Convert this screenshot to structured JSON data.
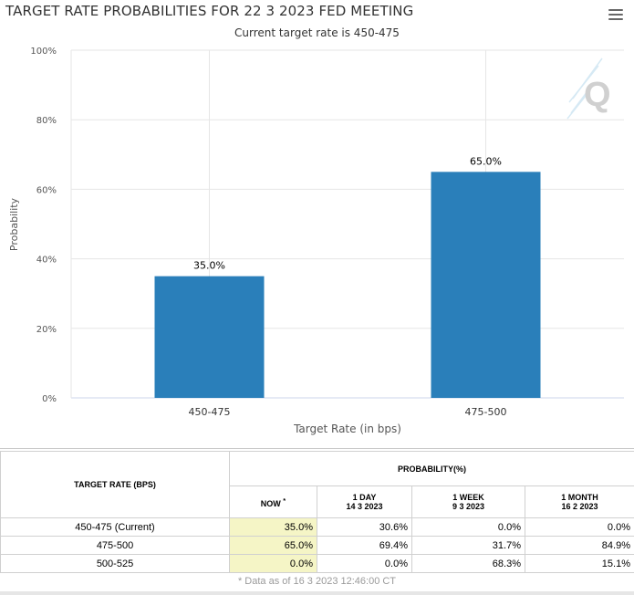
{
  "chart_data": {
    "type": "bar",
    "title": "TARGET RATE PROBABILITIES FOR 22 3 2023 FED MEETING",
    "subtitle": "Current target rate is 450-475",
    "categories": [
      "450-475",
      "475-500"
    ],
    "values": [
      35.0,
      65.0
    ],
    "value_labels": [
      "35.0%",
      "65.0%"
    ],
    "xlabel": "Target Rate (in bps)",
    "ylabel": "Probability",
    "ylim": [
      0,
      100
    ],
    "yticks": [
      0,
      20,
      40,
      60,
      80,
      100
    ],
    "ytick_labels": [
      "0%",
      "20%",
      "40%",
      "60%",
      "80%",
      "100%"
    ],
    "bar_color": "#2a7fba",
    "grid": true
  },
  "table": {
    "header_target": "TARGET RATE (BPS)",
    "header_probability": "PROBABILITY(%)",
    "col_now": "NOW",
    "col_now_mark": "*",
    "col_day": "1 DAY",
    "col_day_date": "14 3 2023",
    "col_week": "1 WEEK",
    "col_week_date": "9 3 2023",
    "col_month": "1 MONTH",
    "col_month_date": "16 2 2023",
    "rows": [
      {
        "rate": "450-475 (Current)",
        "now": "35.0%",
        "day": "30.6%",
        "week": "0.0%",
        "month": "0.0%"
      },
      {
        "rate": "475-500",
        "now": "65.0%",
        "day": "69.4%",
        "week": "31.7%",
        "month": "84.9%"
      },
      {
        "rate": "500-525",
        "now": "0.0%",
        "day": "0.0%",
        "week": "68.3%",
        "month": "15.1%"
      }
    ],
    "footnote": "* Data as of 16 3 2023 12:46:00 CT"
  },
  "watermark": "Q",
  "icons": {
    "menu": "hamburger-menu-icon",
    "logo": "quikstrike-logo-icon"
  }
}
